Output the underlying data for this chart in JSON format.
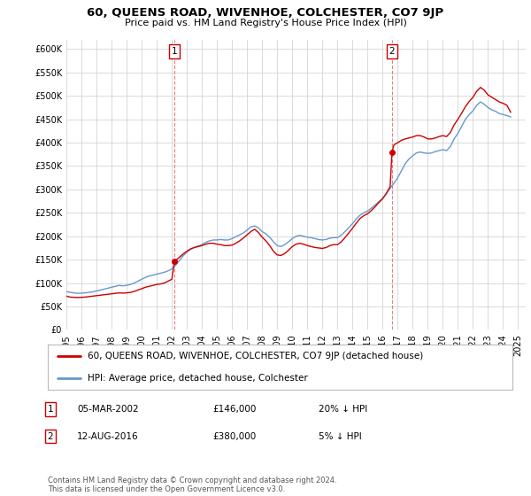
{
  "title": "60, QUEENS ROAD, WIVENHOE, COLCHESTER, CO7 9JP",
  "subtitle": "Price paid vs. HM Land Registry's House Price Index (HPI)",
  "ylim": [
    0,
    620000
  ],
  "yticks": [
    0,
    50000,
    100000,
    150000,
    200000,
    250000,
    300000,
    350000,
    400000,
    450000,
    500000,
    550000,
    600000
  ],
  "sale1": {
    "date_x": 2002.18,
    "price": 146000,
    "label": "1",
    "hpi_pct": "20% ↓ HPI",
    "date_str": "05-MAR-2002"
  },
  "sale2": {
    "date_x": 2016.62,
    "price": 380000,
    "label": "2",
    "hpi_pct": "5% ↓ HPI",
    "date_str": "12-AUG-2016"
  },
  "price_line_color": "#cc0000",
  "hpi_line_color": "#6699cc",
  "vline_color": "#cc0000",
  "marker_color": "#cc0000",
  "background_color": "#ffffff",
  "grid_color": "#cccccc",
  "legend_label_price": "60, QUEENS ROAD, WIVENHOE, COLCHESTER, CO7 9JP (detached house)",
  "legend_label_hpi": "HPI: Average price, detached house, Colchester",
  "footnote": "Contains HM Land Registry data © Crown copyright and database right 2024.\nThis data is licensed under the Open Government Licence v3.0.",
  "hpi_data": [
    [
      1995.0,
      82000
    ],
    [
      1995.25,
      80000
    ],
    [
      1995.5,
      79000
    ],
    [
      1995.75,
      78000
    ],
    [
      1996.0,
      78500
    ],
    [
      1996.25,
      79000
    ],
    [
      1996.5,
      80000
    ],
    [
      1996.75,
      81000
    ],
    [
      1997.0,
      83000
    ],
    [
      1997.25,
      85000
    ],
    [
      1997.5,
      87000
    ],
    [
      1997.75,
      89000
    ],
    [
      1998.0,
      91000
    ],
    [
      1998.25,
      93000
    ],
    [
      1998.5,
      95000
    ],
    [
      1998.75,
      94000
    ],
    [
      1999.0,
      95000
    ],
    [
      1999.25,
      97000
    ],
    [
      1999.5,
      100000
    ],
    [
      1999.75,
      104000
    ],
    [
      2000.0,
      108000
    ],
    [
      2000.25,
      112000
    ],
    [
      2000.5,
      115000
    ],
    [
      2000.75,
      117000
    ],
    [
      2001.0,
      119000
    ],
    [
      2001.25,
      121000
    ],
    [
      2001.5,
      123000
    ],
    [
      2001.75,
      126000
    ],
    [
      2002.0,
      130000
    ],
    [
      2002.25,
      138000
    ],
    [
      2002.5,
      148000
    ],
    [
      2002.75,
      158000
    ],
    [
      2003.0,
      166000
    ],
    [
      2003.25,
      172000
    ],
    [
      2003.5,
      176000
    ],
    [
      2003.75,
      179000
    ],
    [
      2004.0,
      182000
    ],
    [
      2004.25,
      187000
    ],
    [
      2004.5,
      190000
    ],
    [
      2004.75,
      192000
    ],
    [
      2005.0,
      192000
    ],
    [
      2005.25,
      193000
    ],
    [
      2005.5,
      192000
    ],
    [
      2005.75,
      192000
    ],
    [
      2006.0,
      195000
    ],
    [
      2006.25,
      199000
    ],
    [
      2006.5,
      203000
    ],
    [
      2006.75,
      207000
    ],
    [
      2007.0,
      213000
    ],
    [
      2007.25,
      220000
    ],
    [
      2007.5,
      222000
    ],
    [
      2007.75,
      218000
    ],
    [
      2008.0,
      210000
    ],
    [
      2008.25,
      205000
    ],
    [
      2008.5,
      198000
    ],
    [
      2008.75,
      188000
    ],
    [
      2009.0,
      180000
    ],
    [
      2009.25,
      178000
    ],
    [
      2009.5,
      182000
    ],
    [
      2009.75,
      188000
    ],
    [
      2010.0,
      195000
    ],
    [
      2010.25,
      200000
    ],
    [
      2010.5,
      202000
    ],
    [
      2010.75,
      200000
    ],
    [
      2011.0,
      198000
    ],
    [
      2011.25,
      197000
    ],
    [
      2011.5,
      195000
    ],
    [
      2011.75,
      193000
    ],
    [
      2012.0,
      192000
    ],
    [
      2012.25,
      193000
    ],
    [
      2012.5,
      196000
    ],
    [
      2012.75,
      197000
    ],
    [
      2013.0,
      197000
    ],
    [
      2013.25,
      202000
    ],
    [
      2013.5,
      210000
    ],
    [
      2013.75,
      218000
    ],
    [
      2014.0,
      227000
    ],
    [
      2014.25,
      237000
    ],
    [
      2014.5,
      245000
    ],
    [
      2014.75,
      250000
    ],
    [
      2015.0,
      254000
    ],
    [
      2015.25,
      260000
    ],
    [
      2015.5,
      267000
    ],
    [
      2015.75,
      274000
    ],
    [
      2016.0,
      281000
    ],
    [
      2016.25,
      291000
    ],
    [
      2016.5,
      303000
    ],
    [
      2016.75,
      313000
    ],
    [
      2017.0,
      325000
    ],
    [
      2017.25,
      340000
    ],
    [
      2017.5,
      355000
    ],
    [
      2017.75,
      365000
    ],
    [
      2018.0,
      372000
    ],
    [
      2018.25,
      378000
    ],
    [
      2018.5,
      380000
    ],
    [
      2018.75,
      378000
    ],
    [
      2019.0,
      377000
    ],
    [
      2019.25,
      378000
    ],
    [
      2019.5,
      381000
    ],
    [
      2019.75,
      383000
    ],
    [
      2020.0,
      385000
    ],
    [
      2020.25,
      383000
    ],
    [
      2020.5,
      392000
    ],
    [
      2020.75,
      408000
    ],
    [
      2021.0,
      420000
    ],
    [
      2021.25,
      435000
    ],
    [
      2021.5,
      450000
    ],
    [
      2021.75,
      460000
    ],
    [
      2022.0,
      468000
    ],
    [
      2022.25,
      480000
    ],
    [
      2022.5,
      487000
    ],
    [
      2022.75,
      482000
    ],
    [
      2023.0,
      475000
    ],
    [
      2023.25,
      470000
    ],
    [
      2023.5,
      467000
    ],
    [
      2023.75,
      462000
    ],
    [
      2024.0,
      460000
    ],
    [
      2024.25,
      458000
    ],
    [
      2024.5,
      455000
    ]
  ],
  "price_data": [
    [
      1995.0,
      72000
    ],
    [
      1995.25,
      70000
    ],
    [
      1995.5,
      69500
    ],
    [
      1995.75,
      69000
    ],
    [
      1996.0,
      69500
    ],
    [
      1996.25,
      70000
    ],
    [
      1996.5,
      71000
    ],
    [
      1996.75,
      72000
    ],
    [
      1997.0,
      73000
    ],
    [
      1997.25,
      74000
    ],
    [
      1997.5,
      75000
    ],
    [
      1997.75,
      76000
    ],
    [
      1998.0,
      77000
    ],
    [
      1998.25,
      78000
    ],
    [
      1998.5,
      79000
    ],
    [
      1998.75,
      78500
    ],
    [
      1999.0,
      79000
    ],
    [
      1999.25,
      80000
    ],
    [
      1999.5,
      82000
    ],
    [
      1999.75,
      85000
    ],
    [
      2000.0,
      88000
    ],
    [
      2000.25,
      91000
    ],
    [
      2000.5,
      93000
    ],
    [
      2000.75,
      95000
    ],
    [
      2001.0,
      97000
    ],
    [
      2001.25,
      98000
    ],
    [
      2001.5,
      100000
    ],
    [
      2001.75,
      104000
    ],
    [
      2002.0,
      108000
    ],
    [
      2002.18,
      146000
    ],
    [
      2002.25,
      148000
    ],
    [
      2002.5,
      155000
    ],
    [
      2002.75,
      162000
    ],
    [
      2003.0,
      168000
    ],
    [
      2003.25,
      173000
    ],
    [
      2003.5,
      176000
    ],
    [
      2003.75,
      178000
    ],
    [
      2004.0,
      180000
    ],
    [
      2004.25,
      183000
    ],
    [
      2004.5,
      185000
    ],
    [
      2004.75,
      185000
    ],
    [
      2005.0,
      183000
    ],
    [
      2005.25,
      182000
    ],
    [
      2005.5,
      180000
    ],
    [
      2005.75,
      180000
    ],
    [
      2006.0,
      181000
    ],
    [
      2006.25,
      185000
    ],
    [
      2006.5,
      190000
    ],
    [
      2006.75,
      196000
    ],
    [
      2007.0,
      203000
    ],
    [
      2007.25,
      210000
    ],
    [
      2007.5,
      215000
    ],
    [
      2007.75,
      208000
    ],
    [
      2008.0,
      198000
    ],
    [
      2008.25,
      190000
    ],
    [
      2008.5,
      180000
    ],
    [
      2008.75,
      168000
    ],
    [
      2009.0,
      160000
    ],
    [
      2009.25,
      159000
    ],
    [
      2009.5,
      163000
    ],
    [
      2009.75,
      170000
    ],
    [
      2010.0,
      178000
    ],
    [
      2010.25,
      183000
    ],
    [
      2010.5,
      185000
    ],
    [
      2010.75,
      183000
    ],
    [
      2011.0,
      180000
    ],
    [
      2011.25,
      178000
    ],
    [
      2011.5,
      176000
    ],
    [
      2011.75,
      175000
    ],
    [
      2012.0,
      174000
    ],
    [
      2012.25,
      176000
    ],
    [
      2012.5,
      180000
    ],
    [
      2012.75,
      182000
    ],
    [
      2013.0,
      182000
    ],
    [
      2013.25,
      188000
    ],
    [
      2013.5,
      197000
    ],
    [
      2013.75,
      207000
    ],
    [
      2014.0,
      217000
    ],
    [
      2014.25,
      228000
    ],
    [
      2014.5,
      238000
    ],
    [
      2014.75,
      244000
    ],
    [
      2015.0,
      248000
    ],
    [
      2015.25,
      255000
    ],
    [
      2015.5,
      263000
    ],
    [
      2015.75,
      272000
    ],
    [
      2016.0,
      280000
    ],
    [
      2016.25,
      292000
    ],
    [
      2016.5,
      306000
    ],
    [
      2016.62,
      380000
    ],
    [
      2016.75,
      395000
    ],
    [
      2017.0,
      400000
    ],
    [
      2017.25,
      405000
    ],
    [
      2017.5,
      408000
    ],
    [
      2017.75,
      410000
    ],
    [
      2018.0,
      412000
    ],
    [
      2018.25,
      415000
    ],
    [
      2018.5,
      415000
    ],
    [
      2018.75,
      412000
    ],
    [
      2019.0,
      408000
    ],
    [
      2019.25,
      408000
    ],
    [
      2019.5,
      410000
    ],
    [
      2019.75,
      413000
    ],
    [
      2020.0,
      415000
    ],
    [
      2020.25,
      413000
    ],
    [
      2020.5,
      422000
    ],
    [
      2020.75,
      438000
    ],
    [
      2021.0,
      450000
    ],
    [
      2021.25,
      463000
    ],
    [
      2021.5,
      477000
    ],
    [
      2021.75,
      488000
    ],
    [
      2022.0,
      497000
    ],
    [
      2022.25,
      510000
    ],
    [
      2022.5,
      518000
    ],
    [
      2022.75,
      512000
    ],
    [
      2023.0,
      502000
    ],
    [
      2023.25,
      497000
    ],
    [
      2023.5,
      492000
    ],
    [
      2023.75,
      487000
    ],
    [
      2024.0,
      484000
    ],
    [
      2024.25,
      480000
    ],
    [
      2024.5,
      465000
    ]
  ],
  "xmin": 1995.0,
  "xmax": 2025.5,
  "xticks": [
    1995,
    1996,
    1997,
    1998,
    1999,
    2000,
    2001,
    2002,
    2003,
    2004,
    2005,
    2006,
    2007,
    2008,
    2009,
    2010,
    2011,
    2012,
    2013,
    2014,
    2015,
    2016,
    2017,
    2018,
    2019,
    2020,
    2021,
    2022,
    2023,
    2024,
    2025
  ]
}
